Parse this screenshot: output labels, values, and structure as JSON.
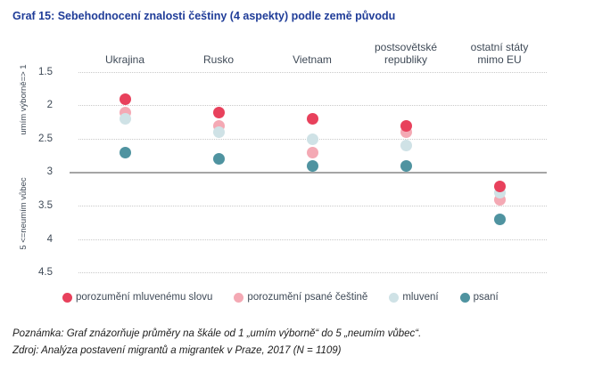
{
  "title": "Graf 15: Sebehodnocení znalosti češtiny (4 aspekty) podle země původu",
  "chart_data": {
    "type": "scatter",
    "title": "Graf 15: Sebehodnocení znalosti češtiny (4 aspekty) podle země původu",
    "categories": [
      "Ukrajina",
      "Rusko",
      "Vietnam",
      "postsovětské\nrepubliky",
      "ostatní státy\nmimo EU"
    ],
    "series": [
      {
        "name": "porozumění mluvenému slovu",
        "color": "#e8415c",
        "values": [
          1.9,
          2.1,
          2.2,
          2.3,
          3.2
        ]
      },
      {
        "name": "porozumění psané češtině",
        "color": "#f4a9b4",
        "values": [
          2.1,
          2.3,
          2.7,
          2.4,
          3.4
        ]
      },
      {
        "name": "mluvení",
        "color": "#cfe2e6",
        "values": [
          2.2,
          2.4,
          2.5,
          2.6,
          3.3
        ]
      },
      {
        "name": "psaní",
        "color": "#4f93a0",
        "values": [
          2.7,
          2.8,
          2.9,
          2.9,
          3.7
        ]
      }
    ],
    "y_axis": {
      "ticks": [
        1.5,
        2,
        2.5,
        3,
        3.5,
        4,
        4.5
      ],
      "range_shown": [
        1.5,
        4.5
      ],
      "scale_range": [
        1,
        5
      ],
      "inverted": true,
      "top_label": "umím výborně=> 1",
      "bottom_label": "5 <=neumím vůbec",
      "solid_line_at": 3
    },
    "grid": "horizontal-dotted",
    "legend_position": "bottom"
  },
  "notes": {
    "poznamka": "Poznámka: Graf znázorňuje průměry na škále od 1 „umím výborně“ do 5 „neumím vůbec“.",
    "zdroj": "Zdroj: Analýza postavení migrantů a migrantek v Praze, 2017 (N = 1109)"
  },
  "colors": {
    "title": "#1f3c98",
    "axis_text": "#3f4a57",
    "gridline": "#c9c9c9",
    "solid_line": "#a5a5a5"
  }
}
